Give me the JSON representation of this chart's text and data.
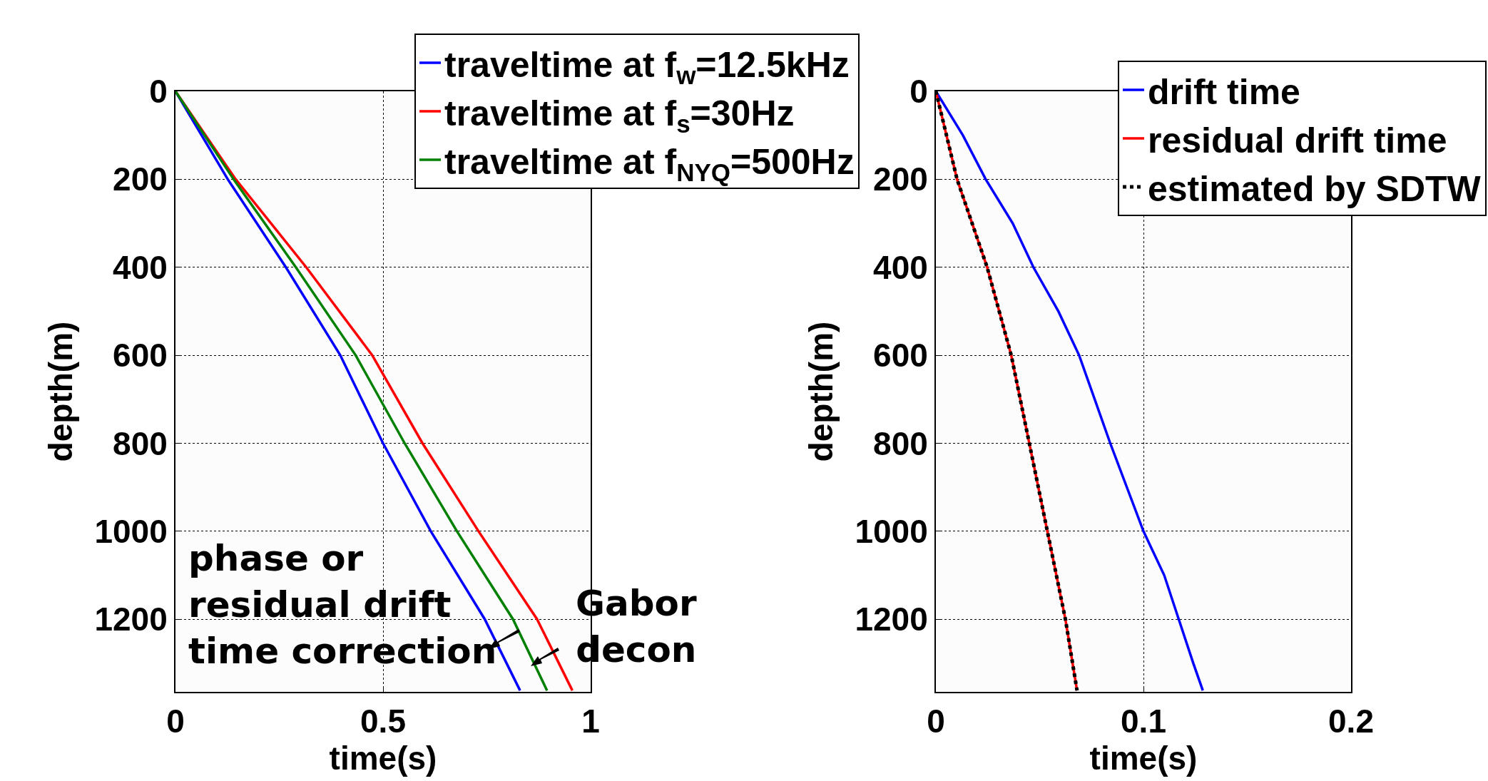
{
  "chart_data": [
    {
      "type": "line",
      "xlabel": "time(s)",
      "ylabel": "depth(m)",
      "xlim": [
        0,
        1
      ],
      "xticks": [
        0,
        0.5,
        1
      ],
      "ylim": [
        1365,
        0
      ],
      "yticks": [
        0,
        200,
        400,
        600,
        800,
        1000,
        1200
      ],
      "grid": true,
      "legend": "top right",
      "line_style": "solid",
      "marker": "none",
      "annotations": [
        "phase or\nresidual drift\ntime correction",
        "Gabor\ndecon"
      ],
      "series": [
        {
          "name": "traveltime at f$_{w}$=12.5kHz",
          "color": "#0000ff",
          "x": [
            0,
            0.126,
            0.266,
            0.397,
            0.5,
            0.615,
            0.745,
            0.83
          ],
          "values": [
            0,
            200,
            400,
            600,
            800,
            1000,
            1200,
            1362
          ]
        },
        {
          "name": "traveltime at f$_{s}$=30Hz",
          "color": "#ff0000",
          "x": [
            0,
            0.145,
            0.315,
            0.474,
            0.595,
            0.73,
            0.871,
            0.956
          ],
          "values": [
            0,
            200,
            400,
            600,
            800,
            1000,
            1200,
            1362
          ]
        },
        {
          "name": "traveltime at f$_{NYQ}$=500Hz",
          "color": "#008000",
          "x": [
            0,
            0.14,
            0.29,
            0.434,
            0.552,
            0.678,
            0.813,
            0.895
          ],
          "values": [
            0,
            200,
            400,
            600,
            800,
            1000,
            1200,
            1362
          ]
        }
      ]
    },
    {
      "type": "line",
      "xlabel": "time(s)",
      "ylabel": "depth(m)",
      "xlim": [
        0,
        0.2
      ],
      "xticks": [
        0,
        0.1,
        0.2
      ],
      "ylim": [
        1365,
        0
      ],
      "yticks": [
        0,
        200,
        400,
        600,
        800,
        1000,
        1200
      ],
      "grid": true,
      "legend": "top right",
      "marker": "none",
      "series": [
        {
          "name": "drift time",
          "color": "#0000ff",
          "line_style": "solid",
          "x": [
            0,
            0.013,
            0.024,
            0.037,
            0.047,
            0.059,
            0.069,
            0.084,
            0.1,
            0.11,
            0.117,
            0.124,
            0.1286
          ],
          "values": [
            0,
            100,
            200,
            300,
            400,
            500,
            600,
            800,
            1000,
            1100,
            1200,
            1300,
            1362
          ]
        },
        {
          "name": "residual drift time",
          "color": "#ff0000",
          "line_style": "solid",
          "x": [
            0,
            0.0102,
            0.0247,
            0.0363,
            0.045,
            0.0537,
            0.0624,
            0.068
          ],
          "values": [
            0,
            200,
            400,
            600,
            800,
            1000,
            1200,
            1362
          ]
        },
        {
          "name": "estimated by SDTW",
          "color": "#000000",
          "line_style": "dotted",
          "x": [
            0,
            0.0102,
            0.0247,
            0.0363,
            0.045,
            0.0537,
            0.0624,
            0.068
          ],
          "values": [
            0,
            200,
            400,
            600,
            800,
            1000,
            1200,
            1362
          ]
        }
      ]
    }
  ]
}
